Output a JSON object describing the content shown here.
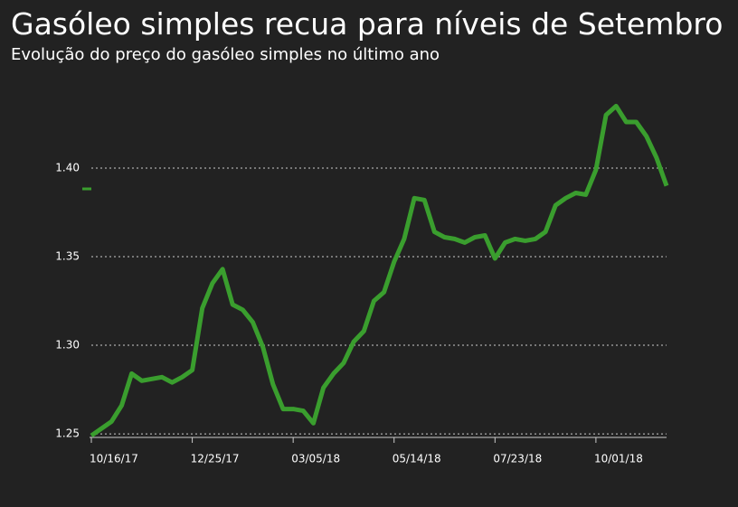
{
  "chart_data": {
    "type": "line",
    "title": "Gasóleo simples recua para níveis de Setembro",
    "subtitle": "Evolução do preço do gasóleo simples no último ano",
    "categories": [
      "10/16/17",
      null,
      null,
      null,
      null,
      null,
      null,
      null,
      null,
      null,
      "12/25/17",
      null,
      null,
      null,
      null,
      null,
      null,
      null,
      null,
      null,
      "03/05/18",
      null,
      null,
      null,
      null,
      null,
      null,
      null,
      null,
      null,
      "05/14/18",
      null,
      null,
      null,
      null,
      null,
      null,
      null,
      null,
      null,
      "07/23/18",
      null,
      null,
      null,
      null,
      null,
      null,
      null,
      null,
      null,
      "10/01/18",
      null,
      null,
      null,
      null,
      null,
      null,
      null
    ],
    "values": [
      1.249,
      1.253,
      1.257,
      1.266,
      1.284,
      1.28,
      1.281,
      1.282,
      1.279,
      1.282,
      1.286,
      1.321,
      1.335,
      1.343,
      1.323,
      1.32,
      1.313,
      1.299,
      1.278,
      1.264,
      1.264,
      1.263,
      1.256,
      1.276,
      1.284,
      1.29,
      1.302,
      1.308,
      1.325,
      1.33,
      1.347,
      1.36,
      1.383,
      1.382,
      1.364,
      1.361,
      1.36,
      1.358,
      1.361,
      1.362,
      1.349,
      1.358,
      1.36,
      1.359,
      1.36,
      1.364,
      1.379,
      1.383,
      1.386,
      1.385,
      1.399,
      1.43,
      1.435,
      1.426,
      1.426,
      1.418,
      1.406,
      1.39
    ],
    "color": "#3a9e2e",
    "ylim": [
      1.248,
      1.44
    ],
    "yticks": [
      1.25,
      {
        "value": 1.3,
        "label": "1.30"
      },
      1.35,
      {
        "value": 1.4,
        "label": "1.40"
      }
    ],
    "grid": true
  }
}
